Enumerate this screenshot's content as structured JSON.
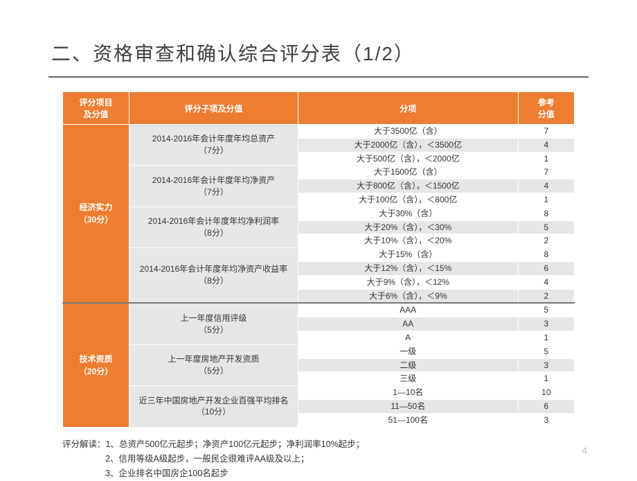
{
  "title": "二、资格审查和确认综合评分表（1/2）",
  "columns": {
    "category": "评分项目\n及分值",
    "subitem": "评分子项及分值",
    "criteria": "分项",
    "score": "参考\n分值"
  },
  "colors": {
    "header_bg": "#ed7d31",
    "header_fg": "#ffffff",
    "alt_row_bg": "#e6e6e6",
    "title_color": "#404040",
    "underline_color": "#666666"
  },
  "groups": [
    {
      "category": "经济实力\n（30分）",
      "subitems": [
        {
          "label": "2014-2016年会计年度年均总资产\n（7分）",
          "rows": [
            {
              "criteria": "大于3500亿（含）",
              "score": "7"
            },
            {
              "criteria": "大于2000亿（含），＜3500亿",
              "score": "4"
            },
            {
              "criteria": "大于500亿（含），＜2000亿",
              "score": "1"
            }
          ]
        },
        {
          "label": "2014-2016年会计年度年均净资产\n（7分）",
          "rows": [
            {
              "criteria": "大于1500亿（含）",
              "score": "7"
            },
            {
              "criteria": "大于800亿（含），＜1500亿",
              "score": "4"
            },
            {
              "criteria": "大于100亿（含），＜800亿",
              "score": "1"
            }
          ]
        },
        {
          "label": "2014-2016年会计年度年均净利润率\n（8分）",
          "rows": [
            {
              "criteria": "大于30%（含）",
              "score": "8"
            },
            {
              "criteria": "大于20%（含），＜30%",
              "score": "5"
            },
            {
              "criteria": "大于10%（含），＜20%",
              "score": "2"
            }
          ]
        },
        {
          "label": "2014-2016年会计年度年均净资产收益率\n（8分）",
          "rows": [
            {
              "criteria": "大于15%（含）",
              "score": "8"
            },
            {
              "criteria": "大于12%（含），＜15%",
              "score": "6"
            },
            {
              "criteria": "大于9%（含），＜12%",
              "score": "4"
            },
            {
              "criteria": "大于6%（含），＜9%",
              "score": "2"
            }
          ]
        }
      ]
    },
    {
      "category": "技术资质\n（20分）",
      "subitems": [
        {
          "label": "上一年度信用评级\n（5分）",
          "rows": [
            {
              "criteria": "AAA",
              "score": "5"
            },
            {
              "criteria": "AA",
              "score": "3"
            },
            {
              "criteria": "A",
              "score": "1"
            }
          ]
        },
        {
          "label": "上一年度房地产开发资质\n（5分）",
          "rows": [
            {
              "criteria": "一级",
              "score": "5"
            },
            {
              "criteria": "二级",
              "score": "3"
            },
            {
              "criteria": "三级",
              "score": "1"
            }
          ]
        },
        {
          "label": "近三年中国房地产开发企业百强平均排名\n（10分）",
          "rows": [
            {
              "criteria": "1—10名",
              "score": "10"
            },
            {
              "criteria": "11—50名",
              "score": "6"
            },
            {
              "criteria": "51—100名",
              "score": "3"
            }
          ]
        }
      ]
    }
  ],
  "footer": {
    "line1": "评分解读：1、总资产500亿元起步；净资产100亿元起步；净利润率10%起步；",
    "line2": "2、信用等级A级起步，一般民企很难评AA级及以上；",
    "line3": "3、企业排名中国房企100名起步"
  },
  "page_number": "4"
}
